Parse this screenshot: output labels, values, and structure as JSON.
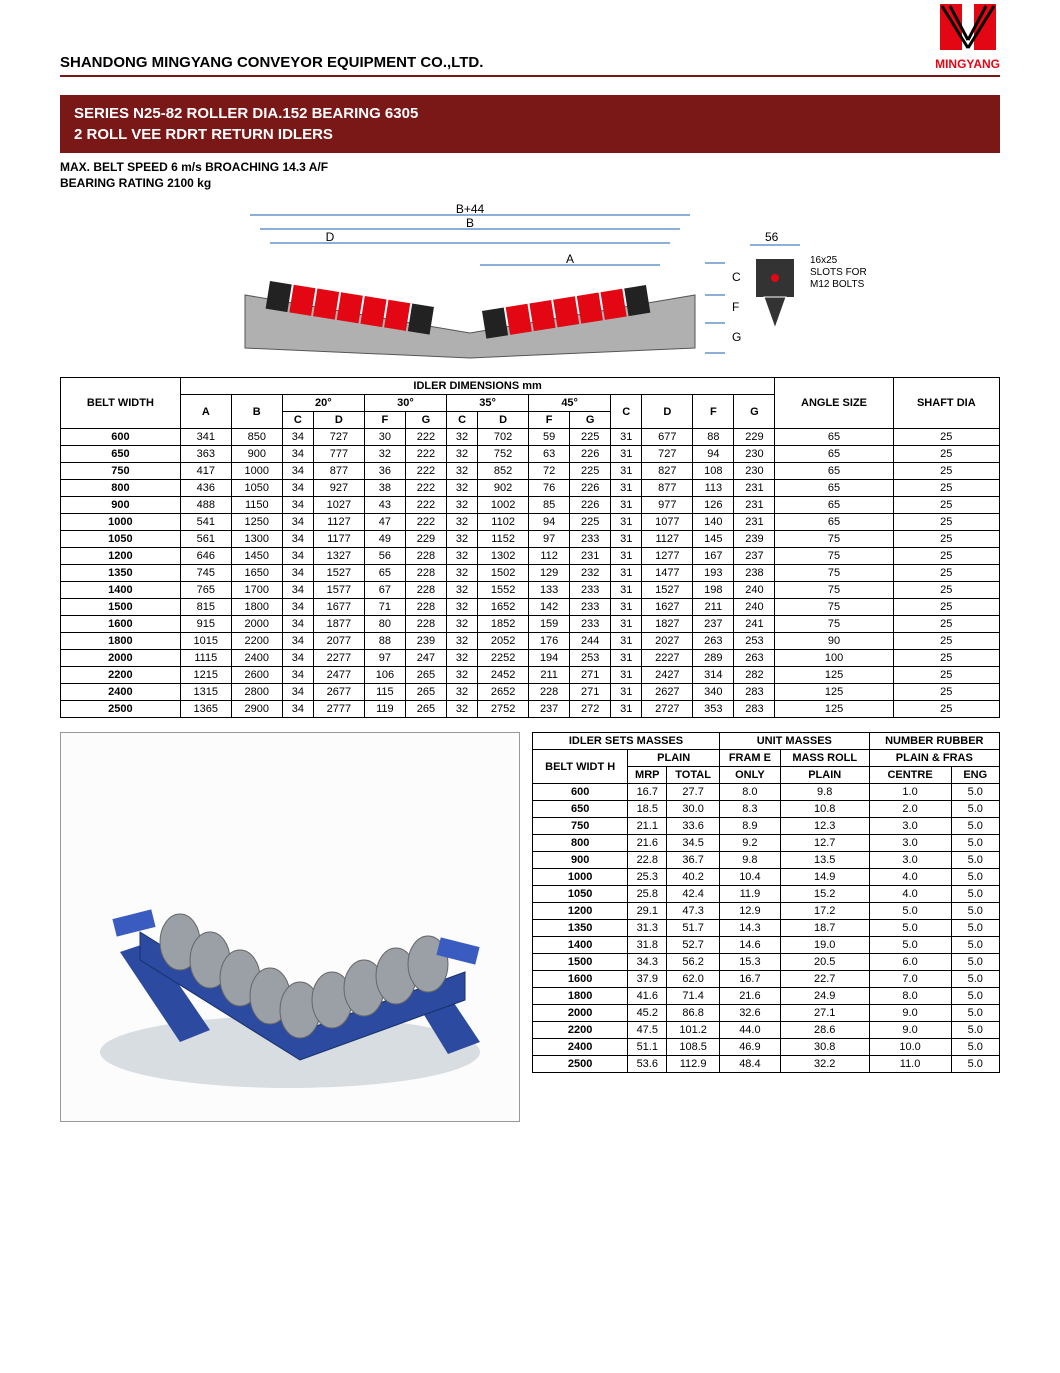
{
  "header": {
    "company": "SHANDONG MINGYANG CONVEYOR EQUIPMENT CO.,LTD.",
    "brand": "MINGYANG"
  },
  "title": {
    "line1": "SERIES N25-82 ROLLER DIA.152 BEARING 6305",
    "line2": "2 ROLL VEE RDRT RETURN IDLERS"
  },
  "specs": {
    "line1": "MAX. BELT SPEED 6 m/s BROACHING 14.3 A/F",
    "line2": "BEARING RATING 2100 kg"
  },
  "diagram": {
    "labels": {
      "B44": "B+44",
      "B": "B",
      "D": "D",
      "A": "A",
      "C": "C",
      "F": "F",
      "G": "G",
      "fiftySix": "56",
      "slotSize": "16x25",
      "slotFor": "SLOTS FOR",
      "boltSize": "M12 BOLTS"
    },
    "colors": {
      "roller": "#e30613",
      "rollerEnd": "#222222",
      "frame": "#b0b0b0",
      "dimLine": "#1a5fb4",
      "bracket": "#333333"
    }
  },
  "dimTable": {
    "mainHeader": "IDLER DIMENSIONS mm",
    "colHeads": {
      "beltWidth": "BELT WIDTH",
      "A": "A",
      "B": "B",
      "deg20": "20°",
      "deg30": "30°",
      "deg35": "35°",
      "deg45": "45°",
      "C": "C",
      "D": "D",
      "F": "F",
      "G": "G",
      "angleSize": "ANGLE SIZE",
      "shaftDia": "SHAFT DIA"
    },
    "rows": [
      [
        "600",
        341,
        850,
        34,
        727,
        30,
        222,
        32,
        702,
        59,
        225,
        31,
        677,
        88,
        229,
        65,
        25
      ],
      [
        "650",
        363,
        900,
        34,
        777,
        32,
        222,
        32,
        752,
        63,
        226,
        31,
        727,
        94,
        230,
        65,
        25
      ],
      [
        "750",
        417,
        1000,
        34,
        877,
        36,
        222,
        32,
        852,
        72,
        225,
        31,
        827,
        108,
        230,
        65,
        25
      ],
      [
        "800",
        436,
        1050,
        34,
        927,
        38,
        222,
        32,
        902,
        76,
        226,
        31,
        877,
        113,
        231,
        65,
        25
      ],
      [
        "900",
        488,
        1150,
        34,
        1027,
        43,
        222,
        32,
        1002,
        85,
        226,
        31,
        977,
        126,
        231,
        65,
        25
      ],
      [
        "1000",
        541,
        1250,
        34,
        1127,
        47,
        222,
        32,
        1102,
        94,
        225,
        31,
        1077,
        140,
        231,
        65,
        25
      ],
      [
        "1050",
        561,
        1300,
        34,
        1177,
        49,
        229,
        32,
        1152,
        97,
        233,
        31,
        1127,
        145,
        239,
        75,
        25
      ],
      [
        "1200",
        646,
        1450,
        34,
        1327,
        56,
        228,
        32,
        1302,
        112,
        231,
        31,
        1277,
        167,
        237,
        75,
        25
      ],
      [
        "1350",
        745,
        1650,
        34,
        1527,
        65,
        228,
        32,
        1502,
        129,
        232,
        31,
        1477,
        193,
        238,
        75,
        25
      ],
      [
        "1400",
        765,
        1700,
        34,
        1577,
        67,
        228,
        32,
        1552,
        133,
        233,
        31,
        1527,
        198,
        240,
        75,
        25
      ],
      [
        "1500",
        815,
        1800,
        34,
        1677,
        71,
        228,
        32,
        1652,
        142,
        233,
        31,
        1627,
        211,
        240,
        75,
        25
      ],
      [
        "1600",
        915,
        2000,
        34,
        1877,
        80,
        228,
        32,
        1852,
        159,
        233,
        31,
        1827,
        237,
        241,
        75,
        25
      ],
      [
        "1800",
        1015,
        2200,
        34,
        2077,
        88,
        239,
        32,
        2052,
        176,
        244,
        31,
        2027,
        263,
        253,
        90,
        25
      ],
      [
        "2000",
        1115,
        2400,
        34,
        2277,
        97,
        247,
        32,
        2252,
        194,
        253,
        31,
        2227,
        289,
        263,
        100,
        25
      ],
      [
        "2200",
        1215,
        2600,
        34,
        2477,
        106,
        265,
        32,
        2452,
        211,
        271,
        31,
        2427,
        314,
        282,
        125,
        25
      ],
      [
        "2400",
        1315,
        2800,
        34,
        2677,
        115,
        265,
        32,
        2652,
        228,
        271,
        31,
        2627,
        340,
        283,
        125,
        25
      ],
      [
        "2500",
        1365,
        2900,
        34,
        2777,
        119,
        265,
        32,
        2752,
        237,
        272,
        31,
        2727,
        353,
        283,
        125,
        25
      ]
    ]
  },
  "massesTable": {
    "headers": {
      "idlerSets": "IDLER SETS MASSES",
      "unitMasses": "UNIT MASSES",
      "numberRubber": "NUMBER RUBBER",
      "beltWidth": "BELT WIDT H",
      "plain": "PLAIN",
      "frame": "FRAM E",
      "massRoll": "MASS ROLL",
      "plainFras": "PLAIN & FRAS",
      "mrp": "MRP",
      "total": "TOTAL",
      "only": "ONLY",
      "plainCol": "PLAIN",
      "centre": "CENTRE",
      "eng": "ENG"
    },
    "rows": [
      [
        "600",
        "16.7",
        "27.7",
        "8.0",
        "9.8",
        "1.0",
        "5.0"
      ],
      [
        "650",
        "18.5",
        "30.0",
        "8.3",
        "10.8",
        "2.0",
        "5.0"
      ],
      [
        "750",
        "21.1",
        "33.6",
        "8.9",
        "12.3",
        "3.0",
        "5.0"
      ],
      [
        "800",
        "21.6",
        "34.5",
        "9.2",
        "12.7",
        "3.0",
        "5.0"
      ],
      [
        "900",
        "22.8",
        "36.7",
        "9.8",
        "13.5",
        "3.0",
        "5.0"
      ],
      [
        "1000",
        "25.3",
        "40.2",
        "10.4",
        "14.9",
        "4.0",
        "5.0"
      ],
      [
        "1050",
        "25.8",
        "42.4",
        "11.9",
        "15.2",
        "4.0",
        "5.0"
      ],
      [
        "1200",
        "29.1",
        "47.3",
        "12.9",
        "17.2",
        "5.0",
        "5.0"
      ],
      [
        "1350",
        "31.3",
        "51.7",
        "14.3",
        "18.7",
        "5.0",
        "5.0"
      ],
      [
        "1400",
        "31.8",
        "52.7",
        "14.6",
        "19.0",
        "5.0",
        "5.0"
      ],
      [
        "1500",
        "34.3",
        "56.2",
        "15.3",
        "20.5",
        "6.0",
        "5.0"
      ],
      [
        "1600",
        "37.9",
        "62.0",
        "16.7",
        "22.7",
        "7.0",
        "5.0"
      ],
      [
        "1800",
        "41.6",
        "71.4",
        "21.6",
        "24.9",
        "8.0",
        "5.0"
      ],
      [
        "2000",
        "45.2",
        "86.8",
        "32.6",
        "27.1",
        "9.0",
        "5.0"
      ],
      [
        "2200",
        "47.5",
        "101.2",
        "44.0",
        "28.6",
        "9.0",
        "5.0"
      ],
      [
        "2400",
        "51.1",
        "108.5",
        "46.9",
        "30.8",
        "10.0",
        "5.0"
      ],
      [
        "2500",
        "53.6",
        "112.9",
        "48.4",
        "32.2",
        "11.0",
        "5.0"
      ]
    ]
  },
  "render": {
    "frameColor": "#2b4aa0",
    "rollerColor": "#9aa0a6",
    "groundColor": "#d8dde2"
  }
}
